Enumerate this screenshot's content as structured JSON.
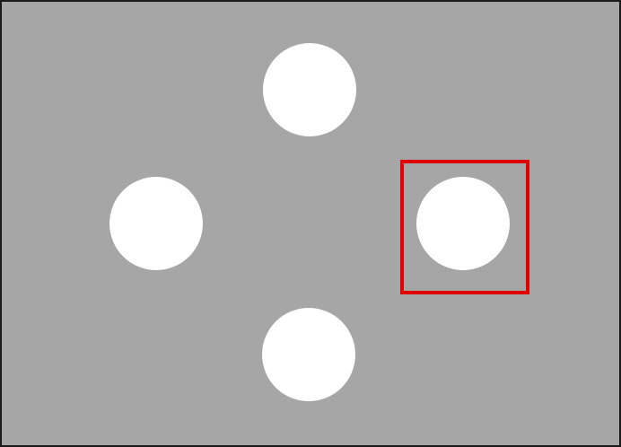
{
  "colors": {
    "background": "#a6a6a6",
    "border": "#1a1a1a",
    "target": "#ffffff",
    "selection": "#e00000"
  },
  "targets": [
    {
      "id": "top",
      "shape": "circle"
    },
    {
      "id": "left",
      "shape": "circle"
    },
    {
      "id": "right",
      "shape": "circle",
      "selected": true
    },
    {
      "id": "bottom",
      "shape": "circle"
    }
  ],
  "selected_target": "right"
}
